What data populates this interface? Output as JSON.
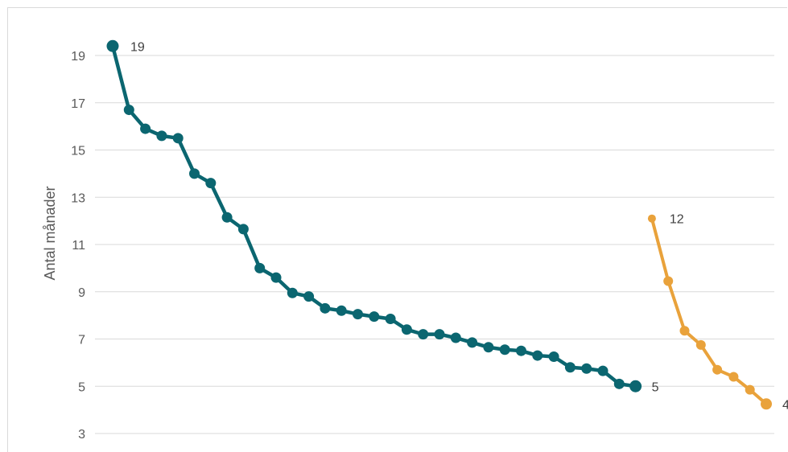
{
  "chart_data": {
    "type": "line",
    "title": "",
    "xlabel": "",
    "ylabel": "Antal månader",
    "ylim": [
      2.5,
      20
    ],
    "yticks": [
      3,
      5,
      7,
      9,
      11,
      13,
      15,
      17,
      19
    ],
    "grid": true,
    "legend": "none",
    "series": [
      {
        "color": "#0b6670",
        "x": [
          1,
          2,
          3,
          4,
          5,
          6,
          7,
          8,
          9,
          10,
          11,
          12,
          13,
          14,
          15,
          16,
          17,
          18,
          19,
          20,
          21,
          22,
          23,
          24,
          25,
          26,
          27,
          28,
          29,
          30,
          31,
          32,
          33
        ],
        "values": [
          19.4,
          16.7,
          15.9,
          15.6,
          15.5,
          14.0,
          13.6,
          12.15,
          11.65,
          10.0,
          9.6,
          8.95,
          8.8,
          8.3,
          8.2,
          8.05,
          7.95,
          7.85,
          7.4,
          7.2,
          7.2,
          7.05,
          6.85,
          6.65,
          6.55,
          6.5,
          6.3,
          6.25,
          5.8,
          5.75,
          5.65,
          5.1,
          5.0
        ],
        "end_labels": {
          "first": "19",
          "last": "5"
        }
      },
      {
        "color": "#e9a23b",
        "x": [
          34,
          35,
          36,
          37,
          38,
          39,
          40,
          41
        ],
        "values": [
          12.1,
          9.45,
          7.35,
          6.75,
          5.7,
          5.4,
          4.85,
          4.25
        ],
        "end_labels": {
          "first": "12",
          "last": "4"
        }
      }
    ]
  }
}
